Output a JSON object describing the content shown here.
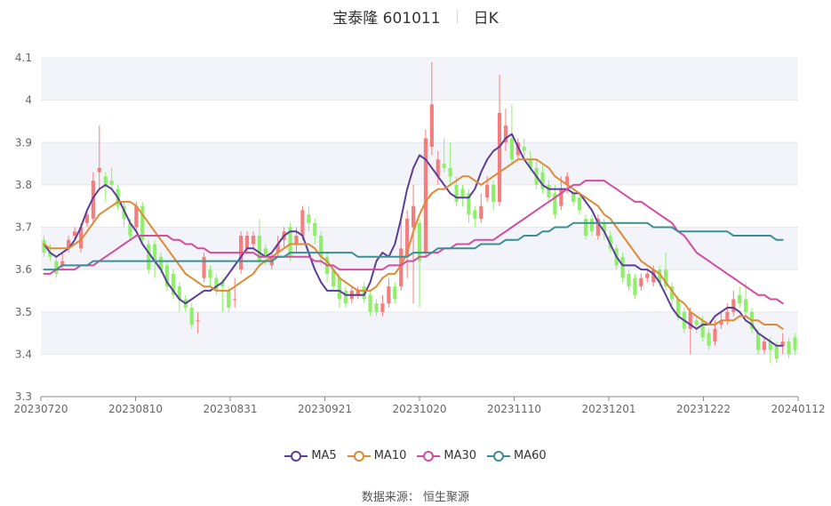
{
  "header": {
    "title": "宝泰隆 601011",
    "period": "日K"
  },
  "source": "数据来源： 恒生聚源",
  "colors": {
    "up": "#f47d7d",
    "down": "#8fef6b",
    "grid": "#e6e8ef",
    "band": "#f3f4f9",
    "axis": "#666666"
  },
  "chart_data": {
    "type": "candlestick",
    "y_axis": {
      "min": 3.3,
      "max": 4.1,
      "ticks": [
        "3.3",
        "3.4",
        "3.5",
        "3.6",
        "3.7",
        "3.8",
        "3.9",
        "4",
        "4.1"
      ]
    },
    "x_labels": [
      "20230720",
      "20230810",
      "20230831",
      "20230921",
      "20231020",
      "20231110",
      "20231201",
      "20231222",
      "20240112"
    ],
    "legend": [
      "MA5",
      "MA10",
      "MA30",
      "MA60"
    ],
    "grid": true,
    "candles": [
      [
        3.67,
        3.64,
        3.68,
        3.63
      ],
      [
        3.64,
        3.63,
        3.66,
        3.62
      ],
      [
        3.62,
        3.59,
        3.63,
        3.58
      ],
      [
        3.61,
        3.62,
        3.64,
        3.6
      ],
      [
        3.65,
        3.67,
        3.68,
        3.64
      ],
      [
        3.68,
        3.69,
        3.7,
        3.67
      ],
      [
        3.65,
        3.7,
        3.71,
        3.64
      ],
      [
        3.71,
        3.73,
        3.74,
        3.7
      ],
      [
        3.72,
        3.81,
        3.83,
        3.71
      ],
      [
        3.83,
        3.84,
        3.94,
        3.79
      ],
      [
        3.82,
        3.8,
        3.83,
        3.76
      ],
      [
        3.81,
        3.8,
        3.84,
        3.79
      ],
      [
        3.79,
        3.75,
        3.8,
        3.74
      ],
      [
        3.75,
        3.72,
        3.76,
        3.7
      ],
      [
        3.71,
        3.68,
        3.72,
        3.67
      ],
      [
        3.7,
        3.75,
        3.76,
        3.69
      ],
      [
        3.75,
        3.67,
        3.76,
        3.66
      ],
      [
        3.66,
        3.6,
        3.67,
        3.59
      ],
      [
        3.66,
        3.62,
        3.67,
        3.58
      ],
      [
        3.63,
        3.6,
        3.64,
        3.59
      ],
      [
        3.61,
        3.56,
        3.62,
        3.55
      ],
      [
        3.59,
        3.54,
        3.6,
        3.53
      ],
      [
        3.56,
        3.53,
        3.57,
        3.5
      ],
      [
        3.53,
        3.51,
        3.54,
        3.5
      ],
      [
        3.51,
        3.47,
        3.52,
        3.46
      ],
      [
        3.48,
        3.48,
        3.5,
        3.45
      ],
      [
        3.58,
        3.63,
        3.64,
        3.57
      ],
      [
        3.6,
        3.58,
        3.61,
        3.56
      ],
      [
        3.58,
        3.55,
        3.59,
        3.54
      ],
      [
        3.57,
        3.56,
        3.58,
        3.5
      ],
      [
        3.55,
        3.51,
        3.56,
        3.5
      ],
      [
        3.53,
        3.53,
        3.58,
        3.51
      ],
      [
        3.6,
        3.68,
        3.69,
        3.59
      ],
      [
        3.65,
        3.68,
        3.69,
        3.64
      ],
      [
        3.66,
        3.68,
        3.69,
        3.65
      ],
      [
        3.68,
        3.62,
        3.72,
        3.61
      ],
      [
        3.65,
        3.63,
        3.66,
        3.61
      ],
      [
        3.61,
        3.63,
        3.64,
        3.6
      ],
      [
        3.64,
        3.66,
        3.68,
        3.63
      ],
      [
        3.67,
        3.69,
        3.7,
        3.65
      ],
      [
        3.7,
        3.63,
        3.71,
        3.62
      ],
      [
        3.66,
        3.68,
        3.7,
        3.64
      ],
      [
        3.68,
        3.74,
        3.75,
        3.67
      ],
      [
        3.73,
        3.71,
        3.75,
        3.69
      ],
      [
        3.71,
        3.68,
        3.72,
        3.66
      ],
      [
        3.68,
        3.63,
        3.69,
        3.61
      ],
      [
        3.63,
        3.59,
        3.64,
        3.57
      ],
      [
        3.6,
        3.56,
        3.61,
        3.55
      ],
      [
        3.58,
        3.53,
        3.59,
        3.51
      ],
      [
        3.55,
        3.52,
        3.56,
        3.51
      ],
      [
        3.53,
        3.55,
        3.56,
        3.52
      ],
      [
        3.54,
        3.55,
        3.56,
        3.53
      ],
      [
        3.56,
        3.53,
        3.57,
        3.52
      ],
      [
        3.54,
        3.5,
        3.55,
        3.49
      ],
      [
        3.52,
        3.5,
        3.53,
        3.49
      ],
      [
        3.5,
        3.52,
        3.54,
        3.49
      ],
      [
        3.52,
        3.56,
        3.58,
        3.51
      ],
      [
        3.56,
        3.53,
        3.57,
        3.52
      ],
      [
        3.56,
        3.65,
        3.73,
        3.55
      ],
      [
        3.63,
        3.72,
        3.74,
        3.58
      ],
      [
        3.7,
        3.75,
        3.8,
        3.52
      ],
      [
        3.71,
        3.62,
        3.72,
        3.51
      ],
      [
        3.64,
        3.91,
        3.93,
        3.63
      ],
      [
        3.89,
        3.99,
        4.09,
        3.87
      ],
      [
        3.82,
        3.86,
        3.88,
        3.8
      ],
      [
        3.85,
        3.84,
        3.91,
        3.83
      ],
      [
        3.84,
        3.82,
        3.9,
        3.8
      ],
      [
        3.8,
        3.76,
        3.82,
        3.75
      ],
      [
        3.79,
        3.77,
        3.8,
        3.75
      ],
      [
        3.78,
        3.73,
        3.79,
        3.71
      ],
      [
        3.74,
        3.72,
        3.75,
        3.7
      ],
      [
        3.72,
        3.75,
        3.78,
        3.71
      ],
      [
        3.77,
        3.8,
        3.82,
        3.76
      ],
      [
        3.8,
        3.76,
        3.81,
        3.74
      ],
      [
        3.76,
        3.97,
        4.06,
        3.75
      ],
      [
        3.9,
        3.94,
        3.98,
        3.88
      ],
      [
        3.91,
        3.86,
        3.99,
        3.85
      ],
      [
        3.87,
        3.9,
        3.91,
        3.86
      ],
      [
        3.89,
        3.88,
        3.91,
        3.86
      ],
      [
        3.86,
        3.84,
        3.88,
        3.83
      ],
      [
        3.84,
        3.8,
        3.86,
        3.79
      ],
      [
        3.83,
        3.79,
        3.85,
        3.78
      ],
      [
        3.8,
        3.77,
        3.81,
        3.76
      ],
      [
        3.78,
        3.73,
        3.8,
        3.72
      ],
      [
        3.75,
        3.79,
        3.82,
        3.74
      ],
      [
        3.8,
        3.82,
        3.83,
        3.78
      ],
      [
        3.78,
        3.76,
        3.79,
        3.75
      ],
      [
        3.77,
        3.74,
        3.78,
        3.73
      ],
      [
        3.72,
        3.68,
        3.73,
        3.67
      ],
      [
        3.72,
        3.69,
        3.73,
        3.68
      ],
      [
        3.68,
        3.72,
        3.73,
        3.67
      ],
      [
        3.71,
        3.69,
        3.72,
        3.67
      ],
      [
        3.68,
        3.65,
        3.69,
        3.64
      ],
      [
        3.65,
        3.61,
        3.66,
        3.6
      ],
      [
        3.63,
        3.58,
        3.64,
        3.57
      ],
      [
        3.59,
        3.56,
        3.6,
        3.55
      ],
      [
        3.58,
        3.54,
        3.59,
        3.53
      ],
      [
        3.56,
        3.58,
        3.59,
        3.55
      ],
      [
        3.58,
        3.59,
        3.6,
        3.57
      ],
      [
        3.57,
        3.6,
        3.61,
        3.56
      ],
      [
        3.6,
        3.57,
        3.61,
        3.56
      ],
      [
        3.6,
        3.56,
        3.64,
        3.55
      ],
      [
        3.56,
        3.53,
        3.57,
        3.51
      ],
      [
        3.53,
        3.49,
        3.54,
        3.48
      ],
      [
        3.5,
        3.46,
        3.51,
        3.45
      ],
      [
        3.46,
        3.5,
        3.51,
        3.4
      ],
      [
        3.48,
        3.47,
        3.49,
        3.45
      ],
      [
        3.48,
        3.44,
        3.49,
        3.43
      ],
      [
        3.45,
        3.42,
        3.46,
        3.41
      ],
      [
        3.43,
        3.46,
        3.48,
        3.42
      ],
      [
        3.47,
        3.48,
        3.5,
        3.46
      ],
      [
        3.48,
        3.5,
        3.52,
        3.47
      ],
      [
        3.5,
        3.53,
        3.55,
        3.49
      ],
      [
        3.54,
        3.52,
        3.56,
        3.51
      ],
      [
        3.53,
        3.5,
        3.57,
        3.49
      ],
      [
        3.5,
        3.46,
        3.51,
        3.45
      ],
      [
        3.45,
        3.41,
        3.46,
        3.4
      ],
      [
        3.41,
        3.43,
        3.44,
        3.4
      ],
      [
        3.43,
        3.41,
        3.44,
        3.38
      ],
      [
        3.42,
        3.39,
        3.43,
        3.38
      ],
      [
        3.42,
        3.43,
        3.45,
        3.4
      ],
      [
        3.43,
        3.4,
        3.44,
        3.39
      ],
      [
        3.44,
        3.41,
        3.45,
        3.4
      ]
    ],
    "series": [
      {
        "name": "MA5",
        "color": "#5b3d9b",
        "values": [
          3.66,
          3.64,
          3.63,
          3.64,
          3.65,
          3.67,
          3.7,
          3.74,
          3.77,
          3.79,
          3.8,
          3.79,
          3.77,
          3.74,
          3.71,
          3.69,
          3.66,
          3.64,
          3.62,
          3.6,
          3.57,
          3.55,
          3.53,
          3.52,
          3.53,
          3.54,
          3.55,
          3.55,
          3.56,
          3.57,
          3.59,
          3.61,
          3.63,
          3.65,
          3.65,
          3.64,
          3.63,
          3.64,
          3.66,
          3.68,
          3.69,
          3.69,
          3.68,
          3.64,
          3.6,
          3.57,
          3.55,
          3.55,
          3.55,
          3.54,
          3.54,
          3.54,
          3.54,
          3.57,
          3.62,
          3.64,
          3.63,
          3.66,
          3.72,
          3.79,
          3.84,
          3.87,
          3.86,
          3.84,
          3.82,
          3.8,
          3.78,
          3.77,
          3.77,
          3.77,
          3.79,
          3.83,
          3.86,
          3.88,
          3.89,
          3.91,
          3.92,
          3.89,
          3.86,
          3.84,
          3.82,
          3.8,
          3.79,
          3.79,
          3.79,
          3.79,
          3.78,
          3.78,
          3.76,
          3.74,
          3.71,
          3.69,
          3.66,
          3.63,
          3.61,
          3.61,
          3.61,
          3.6,
          3.6,
          3.59,
          3.57,
          3.54,
          3.51,
          3.49,
          3.48,
          3.47,
          3.46,
          3.47,
          3.47,
          3.49,
          3.5,
          3.51,
          3.51,
          3.5,
          3.48,
          3.47,
          3.45,
          3.44,
          3.43,
          3.42,
          3.42
        ]
      },
      {
        "name": "MA10",
        "color": "#e08a35",
        "values": [
          3.66,
          3.65,
          3.65,
          3.65,
          3.65,
          3.66,
          3.67,
          3.69,
          3.71,
          3.73,
          3.74,
          3.75,
          3.76,
          3.76,
          3.76,
          3.75,
          3.73,
          3.71,
          3.69,
          3.67,
          3.65,
          3.63,
          3.61,
          3.59,
          3.58,
          3.57,
          3.56,
          3.56,
          3.55,
          3.55,
          3.55,
          3.56,
          3.57,
          3.58,
          3.59,
          3.61,
          3.62,
          3.63,
          3.64,
          3.65,
          3.66,
          3.66,
          3.66,
          3.66,
          3.65,
          3.63,
          3.62,
          3.6,
          3.58,
          3.57,
          3.56,
          3.55,
          3.55,
          3.55,
          3.56,
          3.58,
          3.59,
          3.59,
          3.61,
          3.64,
          3.69,
          3.73,
          3.76,
          3.78,
          3.79,
          3.79,
          3.8,
          3.81,
          3.82,
          3.82,
          3.81,
          3.8,
          3.81,
          3.82,
          3.83,
          3.84,
          3.85,
          3.86,
          3.86,
          3.86,
          3.86,
          3.85,
          3.84,
          3.82,
          3.81,
          3.8,
          3.79,
          3.78,
          3.77,
          3.76,
          3.75,
          3.73,
          3.72,
          3.7,
          3.68,
          3.66,
          3.64,
          3.62,
          3.61,
          3.6,
          3.59,
          3.57,
          3.55,
          3.53,
          3.52,
          3.5,
          3.49,
          3.48,
          3.47,
          3.47,
          3.48,
          3.48,
          3.48,
          3.49,
          3.49,
          3.48,
          3.48,
          3.47,
          3.47,
          3.47,
          3.46
        ]
      },
      {
        "name": "MA30",
        "color": "#d44c9f",
        "values": [
          3.59,
          3.59,
          3.6,
          3.6,
          3.6,
          3.6,
          3.61,
          3.61,
          3.61,
          3.62,
          3.63,
          3.64,
          3.65,
          3.66,
          3.67,
          3.68,
          3.68,
          3.68,
          3.68,
          3.68,
          3.68,
          3.67,
          3.67,
          3.66,
          3.66,
          3.65,
          3.65,
          3.64,
          3.64,
          3.64,
          3.64,
          3.64,
          3.64,
          3.64,
          3.64,
          3.63,
          3.63,
          3.63,
          3.63,
          3.63,
          3.63,
          3.63,
          3.63,
          3.63,
          3.62,
          3.62,
          3.61,
          3.61,
          3.6,
          3.6,
          3.6,
          3.6,
          3.6,
          3.6,
          3.6,
          3.6,
          3.61,
          3.61,
          3.61,
          3.62,
          3.62,
          3.63,
          3.63,
          3.64,
          3.64,
          3.65,
          3.65,
          3.66,
          3.66,
          3.66,
          3.67,
          3.67,
          3.67,
          3.67,
          3.68,
          3.69,
          3.7,
          3.71,
          3.72,
          3.73,
          3.74,
          3.75,
          3.76,
          3.77,
          3.78,
          3.79,
          3.8,
          3.8,
          3.81,
          3.81,
          3.81,
          3.81,
          3.8,
          3.79,
          3.78,
          3.77,
          3.76,
          3.76,
          3.75,
          3.74,
          3.73,
          3.72,
          3.71,
          3.69,
          3.68,
          3.66,
          3.64,
          3.63,
          3.62,
          3.61,
          3.6,
          3.59,
          3.58,
          3.57,
          3.56,
          3.55,
          3.54,
          3.54,
          3.53,
          3.53,
          3.52
        ]
      },
      {
        "name": "MA60",
        "color": "#3a8f94",
        "values": [
          3.6,
          3.6,
          3.6,
          3.61,
          3.61,
          3.61,
          3.61,
          3.61,
          3.62,
          3.62,
          3.62,
          3.62,
          3.62,
          3.62,
          3.62,
          3.62,
          3.62,
          3.62,
          3.62,
          3.62,
          3.62,
          3.62,
          3.62,
          3.62,
          3.62,
          3.62,
          3.62,
          3.62,
          3.62,
          3.62,
          3.62,
          3.62,
          3.62,
          3.62,
          3.62,
          3.62,
          3.62,
          3.62,
          3.63,
          3.63,
          3.64,
          3.64,
          3.64,
          3.64,
          3.64,
          3.64,
          3.64,
          3.64,
          3.64,
          3.64,
          3.64,
          3.63,
          3.63,
          3.63,
          3.63,
          3.63,
          3.63,
          3.63,
          3.63,
          3.63,
          3.64,
          3.64,
          3.64,
          3.64,
          3.65,
          3.65,
          3.65,
          3.65,
          3.65,
          3.65,
          3.65,
          3.66,
          3.66,
          3.66,
          3.66,
          3.67,
          3.67,
          3.67,
          3.68,
          3.68,
          3.68,
          3.69,
          3.69,
          3.7,
          3.7,
          3.7,
          3.71,
          3.71,
          3.71,
          3.71,
          3.71,
          3.71,
          3.71,
          3.71,
          3.71,
          3.71,
          3.71,
          3.71,
          3.71,
          3.7,
          3.7,
          3.7,
          3.7,
          3.69,
          3.69,
          3.69,
          3.69,
          3.69,
          3.69,
          3.69,
          3.69,
          3.69,
          3.68,
          3.68,
          3.68,
          3.68,
          3.68,
          3.68,
          3.68,
          3.67,
          3.67
        ]
      }
    ]
  }
}
